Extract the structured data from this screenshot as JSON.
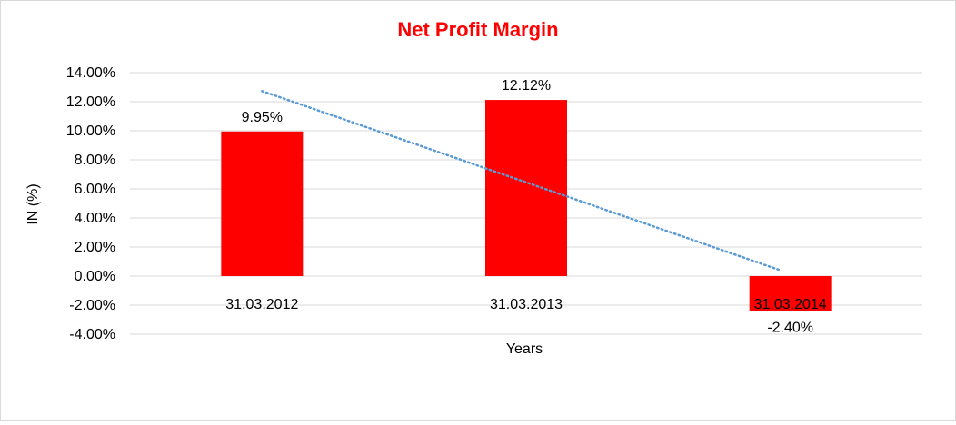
{
  "chart_data": {
    "type": "bar",
    "title": "Net Profit Margin",
    "xlabel": "Years",
    "ylabel": "IN (%)",
    "categories": [
      "31.03.2012",
      "31.03.2013",
      "31.03.2014"
    ],
    "series": [
      {
        "values": [
          9.95,
          12.12,
          -2.4
        ],
        "data_labels": [
          "9.95%",
          "12.12%",
          "-2.40%"
        ]
      }
    ],
    "ylim": [
      -4,
      14
    ],
    "y_ticks": [
      14,
      12,
      10,
      8,
      6,
      4,
      2,
      0,
      -2,
      -4
    ],
    "y_tick_labels": [
      "14.00%",
      "12.00%",
      "10.00%",
      "8.00%",
      "6.00%",
      "4.00%",
      "2.00%",
      "0.00%",
      "-2.00%",
      "-4.00%"
    ],
    "trendline": {
      "type": "linear",
      "style": "dotted",
      "color": "#5b9bd5"
    },
    "grid": true,
    "legend": "none",
    "colors": {
      "bar": "#ff0000",
      "title": "#ff0000",
      "grid": "#d9d9d9"
    }
  }
}
